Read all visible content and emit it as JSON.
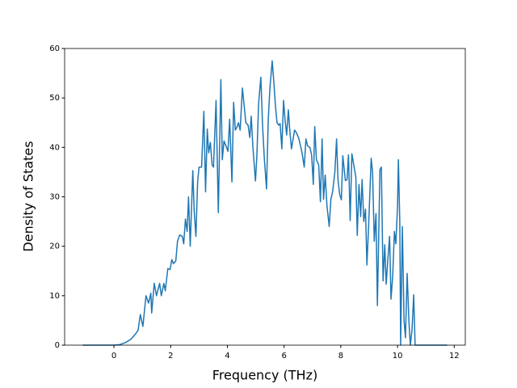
{
  "chart_data": {
    "type": "line",
    "xlabel": "Frequency (THz)",
    "ylabel": "Density of States",
    "xlim": [
      -1.74,
      12.39
    ],
    "ylim": [
      0,
      60
    ],
    "xticks": [
      0,
      2,
      4,
      6,
      8,
      10,
      12
    ],
    "yticks": [
      0,
      10,
      20,
      30,
      40,
      50,
      60
    ],
    "grid": false,
    "series": [
      {
        "color": "#1f77b4",
        "x": [
          -1.1,
          -0.5,
          0,
          0.2,
          0.4,
          0.6,
          0.75,
          0.85,
          0.93,
          1.02,
          1.13,
          1.22,
          1.3,
          1.33,
          1.42,
          1.5,
          1.61,
          1.67,
          1.76,
          1.81,
          1.9,
          1.98,
          2.04,
          2.1,
          2.18,
          2.24,
          2.32,
          2.41,
          2.46,
          2.52,
          2.58,
          2.63,
          2.69,
          2.78,
          2.83,
          2.89,
          2.95,
          3.0,
          3.09,
          3.17,
          3.23,
          3.29,
          3.34,
          3.4,
          3.46,
          3.51,
          3.6,
          3.68,
          3.77,
          3.82,
          3.88,
          3.97,
          4.02,
          4.08,
          4.16,
          4.22,
          4.28,
          4.33,
          4.39,
          4.45,
          4.53,
          4.59,
          4.65,
          4.73,
          4.79,
          4.84,
          4.9,
          4.99,
          5.04,
          5.1,
          5.18,
          5.24,
          5.3,
          5.38,
          5.44,
          5.5,
          5.58,
          5.64,
          5.69,
          5.75,
          5.81,
          5.86,
          5.92,
          5.98,
          6.03,
          6.09,
          6.15,
          6.2,
          6.26,
          6.32,
          6.37,
          6.43,
          6.52,
          6.57,
          6.63,
          6.71,
          6.77,
          6.83,
          6.91,
          6.97,
          7.03,
          7.08,
          7.14,
          7.22,
          7.28,
          7.34,
          7.39,
          7.45,
          7.51,
          7.59,
          7.65,
          7.71,
          7.79,
          7.85,
          7.9,
          7.96,
          8.02,
          8.07,
          8.16,
          8.22,
          8.27,
          8.33,
          8.39,
          8.44,
          8.53,
          8.58,
          8.64,
          8.7,
          8.75,
          8.81,
          8.87,
          8.92,
          8.98,
          9.07,
          9.12,
          9.18,
          9.24,
          9.29,
          9.38,
          9.43,
          9.49,
          9.55,
          9.6,
          9.66,
          9.72,
          9.77,
          9.83,
          9.89,
          9.94,
          10.0,
          10.03,
          10.08,
          10.11,
          10.17,
          10.23,
          10.28,
          10.34,
          10.4,
          10.45,
          10.51,
          10.57,
          10.62,
          11.75
        ],
        "values": [
          0,
          0,
          0,
          0.1,
          0.5,
          1.2,
          2.2,
          3,
          6.2,
          3.8,
          10,
          8.5,
          10.5,
          6.5,
          12.5,
          10,
          12.5,
          10,
          12.5,
          11,
          15.5,
          15.3,
          17.3,
          16.5,
          17,
          21,
          22.3,
          22,
          20.5,
          25.5,
          23,
          30,
          20,
          35.3,
          27,
          22,
          33,
          36,
          36,
          47.3,
          31,
          43.7,
          38.9,
          41,
          36.5,
          36,
          49.5,
          26.8,
          53.7,
          37.5,
          41.3,
          40,
          39.2,
          45.7,
          33,
          49.1,
          43.5,
          44,
          45,
          43.5,
          52,
          48.5,
          45,
          44.5,
          42,
          46.3,
          40,
          33.2,
          38.3,
          48.8,
          54.2,
          44.5,
          38,
          31.6,
          45.5,
          52,
          57.5,
          53,
          48.7,
          45,
          44.5,
          44.8,
          39.7,
          49.5,
          45.8,
          42.5,
          47.6,
          43.5,
          39.7,
          41.8,
          43.5,
          43,
          41.8,
          40.5,
          39,
          36,
          41.7,
          40.3,
          40,
          38.5,
          32.5,
          44.2,
          37.5,
          36.5,
          29,
          41.7,
          29.5,
          34.4,
          28.3,
          24,
          29.5,
          31,
          35,
          41.7,
          33.5,
          30.5,
          29.4,
          38.3,
          33.3,
          33.5,
          38.5,
          25.2,
          38.7,
          37,
          34,
          22.2,
          32.5,
          26,
          33.5,
          25,
          27.5,
          16.2,
          24,
          37.8,
          35,
          21,
          26.6,
          8,
          35.5,
          36,
          13,
          20.3,
          12.3,
          17.5,
          22,
          9.3,
          14,
          23,
          20.5,
          28,
          37.5,
          25,
          0,
          24,
          5,
          1.5,
          14.5,
          5,
          0,
          3,
          10.2,
          0,
          0
        ]
      }
    ]
  }
}
